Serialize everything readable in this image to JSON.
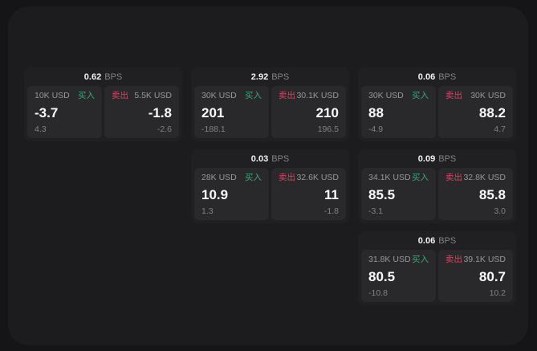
{
  "labels": {
    "bps_unit": "BPS",
    "buy": "买入",
    "sell": "卖出"
  },
  "colors": {
    "buy_green": "#3aa675",
    "sell_red": "#c94b62",
    "surface": "#1c1c1e",
    "card": "#202022",
    "pane": "#29292c"
  },
  "cards": [
    {
      "bps": "0.62",
      "buy": {
        "notional": "10K USD",
        "price": "-3.7",
        "delta": "4.3"
      },
      "sell": {
        "notional": "5.5K USD",
        "price": "-1.8",
        "delta": "-2.6"
      }
    },
    {
      "bps": "2.92",
      "buy": {
        "notional": "30K USD",
        "price": "201",
        "delta": "-188.1"
      },
      "sell": {
        "notional": "30.1K USD",
        "price": "210",
        "delta": "196.5"
      }
    },
    {
      "bps": "0.06",
      "buy": {
        "notional": "30K USD",
        "price": "88",
        "delta": "-4.9"
      },
      "sell": {
        "notional": "30K USD",
        "price": "88.2",
        "delta": "4.7"
      }
    },
    {
      "bps": "0.03",
      "buy": {
        "notional": "28K USD",
        "price": "10.9",
        "delta": "1.3"
      },
      "sell": {
        "notional": "32.6K USD",
        "price": "11",
        "delta": "-1.8"
      }
    },
    {
      "bps": "0.09",
      "buy": {
        "notional": "34.1K USD",
        "price": "85.5",
        "delta": "-3.1"
      },
      "sell": {
        "notional": "32.8K USD",
        "price": "85.8",
        "delta": "3.0"
      }
    },
    {
      "bps": "0.06",
      "buy": {
        "notional": "31.8K USD",
        "price": "80.5",
        "delta": "-10.8"
      },
      "sell": {
        "notional": "39.1K USD",
        "price": "80.7",
        "delta": "10.2"
      }
    }
  ]
}
